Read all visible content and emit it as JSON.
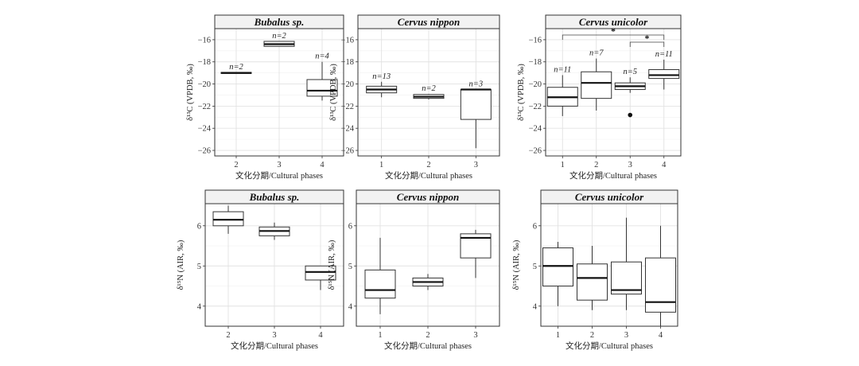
{
  "chart_data": [
    {
      "type": "boxplot",
      "title": "Bubalus sp.",
      "xlabel": "文化分期/Cultural phases",
      "ylabel": "δ¹³C (VPDB, ‰)",
      "ylim": [
        -26.5,
        -15
      ],
      "yticks": [
        -16,
        -18,
        -20,
        -22,
        -24,
        -26
      ],
      "categories": [
        "2",
        "3",
        "4"
      ],
      "boxes": [
        {
          "q1": -19.05,
          "median": -19.0,
          "q3": -18.95,
          "whislo": -19.05,
          "whishi": -18.95,
          "outliers": [],
          "n": "n=2"
        },
        {
          "q1": -16.6,
          "median": -16.4,
          "q3": -16.15,
          "whislo": -16.6,
          "whishi": -16.15,
          "outliers": [],
          "n": "n=2"
        },
        {
          "q1": -21.1,
          "median": -20.6,
          "q3": -19.6,
          "whislo": -21.5,
          "whishi": -18.0,
          "outliers": [],
          "n": "n=4"
        }
      ],
      "significance": []
    },
    {
      "type": "boxplot",
      "title": "Cervus nippon",
      "xlabel": "文化分期/Cultural phases",
      "ylabel": "δ¹³C (VPDB, ‰)",
      "ylim": [
        -26.5,
        -15
      ],
      "yticks": [
        -16,
        -18,
        -20,
        -22,
        -24,
        -26
      ],
      "categories": [
        "1",
        "2",
        "3"
      ],
      "boxes": [
        {
          "q1": -20.8,
          "median": -20.5,
          "q3": -20.2,
          "whislo": -21.2,
          "whishi": -19.8,
          "outliers": [],
          "n": "n=13"
        },
        {
          "q1": -21.3,
          "median": -21.15,
          "q3": -20.95,
          "whislo": -21.4,
          "whishi": -20.9,
          "outliers": [],
          "n": "n=2"
        },
        {
          "q1": -23.2,
          "median": -20.5,
          "q3": -20.5,
          "whislo": -25.8,
          "whishi": -20.5,
          "outliers": [],
          "n": "n=3"
        }
      ],
      "significance": []
    },
    {
      "type": "boxplot",
      "title": "Cervus unicolor",
      "xlabel": "文化分期/Cultural phases",
      "ylabel": "δ¹³C (VPDB, ‰)",
      "ylim": [
        -26.5,
        -15
      ],
      "yticks": [
        -16,
        -18,
        -20,
        -22,
        -24,
        -26
      ],
      "categories": [
        "1",
        "2",
        "3",
        "4"
      ],
      "boxes": [
        {
          "q1": -22.0,
          "median": -21.2,
          "q3": -20.3,
          "whislo": -22.9,
          "whishi": -19.2,
          "outliers": [],
          "n": "n=11"
        },
        {
          "q1": -21.3,
          "median": -19.9,
          "q3": -18.9,
          "whislo": -22.4,
          "whishi": -17.7,
          "outliers": [],
          "n": "n=7"
        },
        {
          "q1": -20.5,
          "median": -20.2,
          "q3": -19.9,
          "whislo": -20.8,
          "whishi": -19.4,
          "outliers": [
            -22.8
          ],
          "n": "n=5"
        },
        {
          "q1": -19.5,
          "median": -19.2,
          "q3": -18.7,
          "whislo": -20.5,
          "whishi": -17.8,
          "outliers": [],
          "n": "n=11"
        }
      ],
      "significance": [
        {
          "from": 0,
          "to": 3,
          "label": "*"
        },
        {
          "from": 2,
          "to": 3,
          "label": "*"
        }
      ]
    },
    {
      "type": "boxplot",
      "title": "Bubalus sp.",
      "xlabel": "文化分期/Cultural phases",
      "ylabel": "δ¹⁵N (AIR, ‰)",
      "ylim": [
        3.5,
        6.55
      ],
      "yticks": [
        4,
        5,
        6
      ],
      "categories": [
        "2",
        "3",
        "4"
      ],
      "boxes": [
        {
          "q1": 6.0,
          "median": 6.15,
          "q3": 6.35,
          "whislo": 5.8,
          "whishi": 6.5,
          "outliers": [],
          "n": ""
        },
        {
          "q1": 5.75,
          "median": 5.87,
          "q3": 5.97,
          "whislo": 5.65,
          "whishi": 6.08,
          "outliers": [],
          "n": ""
        },
        {
          "q1": 4.65,
          "median": 4.85,
          "q3": 5.0,
          "whislo": 4.4,
          "whishi": 5.0,
          "outliers": [],
          "n": ""
        }
      ],
      "significance": []
    },
    {
      "type": "boxplot",
      "title": "Cervus nippon",
      "xlabel": "文化分期/Cultural phases",
      "ylabel": "δ¹⁵N (AIR, ‰)",
      "ylim": [
        3.5,
        6.55
      ],
      "yticks": [
        4,
        5,
        6
      ],
      "categories": [
        "1",
        "2",
        "3"
      ],
      "boxes": [
        {
          "q1": 4.2,
          "median": 4.4,
          "q3": 4.9,
          "whislo": 3.8,
          "whishi": 5.7,
          "outliers": [],
          "n": ""
        },
        {
          "q1": 4.5,
          "median": 4.6,
          "q3": 4.7,
          "whislo": 4.4,
          "whishi": 4.8,
          "outliers": [],
          "n": ""
        },
        {
          "q1": 5.2,
          "median": 5.7,
          "q3": 5.8,
          "whislo": 4.7,
          "whishi": 5.9,
          "outliers": [],
          "n": ""
        }
      ],
      "significance": []
    },
    {
      "type": "boxplot",
      "title": "Cervus unicolor",
      "xlabel": "文化分期/Cultural phases",
      "ylabel": "δ¹⁵N (AIR, ‰)",
      "ylim": [
        3.5,
        6.55
      ],
      "yticks": [
        4,
        5,
        6
      ],
      "categories": [
        "1",
        "2",
        "3",
        "4"
      ],
      "boxes": [
        {
          "q1": 4.5,
          "median": 5.0,
          "q3": 5.45,
          "whislo": 4.0,
          "whishi": 5.6,
          "outliers": [],
          "n": ""
        },
        {
          "q1": 4.15,
          "median": 4.7,
          "q3": 5.05,
          "whislo": 3.9,
          "whishi": 5.5,
          "outliers": [],
          "n": ""
        },
        {
          "q1": 4.3,
          "median": 4.4,
          "q3": 5.1,
          "whislo": 3.9,
          "whishi": 6.2,
          "outliers": [],
          "n": ""
        },
        {
          "q1": 3.85,
          "median": 4.1,
          "q3": 5.2,
          "whislo": 3.5,
          "whishi": 6.0,
          "outliers": [],
          "n": ""
        }
      ],
      "significance": []
    }
  ]
}
